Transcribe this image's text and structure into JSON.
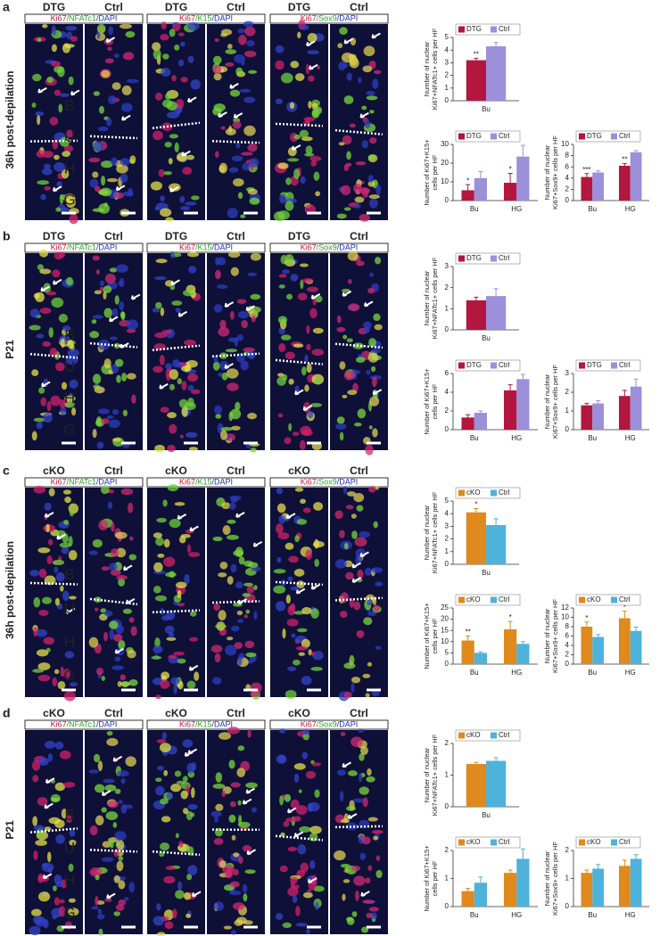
{
  "panels": [
    {
      "label": "a",
      "row_label": "36h post-depilation",
      "regions": [
        "B",
        "U",
        "H",
        "G"
      ],
      "groups": [
        {
          "headers": [
            "DTG",
            "Ctrl"
          ],
          "stain": [
            "Ki67",
            "/NFATc1",
            "/DAPI"
          ]
        },
        {
          "headers": [
            "DTG",
            "Ctrl"
          ],
          "stain": [
            "Ki67",
            "/K15",
            "/DAPI"
          ]
        },
        {
          "headers": [
            "DTG",
            "Ctrl"
          ],
          "stain": [
            "Ki67",
            "/Sox9",
            "/DAPI"
          ]
        }
      ]
    },
    {
      "label": "b",
      "row_label": "P21",
      "regions": [
        "B",
        "U",
        "H",
        "G"
      ],
      "groups": [
        {
          "headers": [
            "DTG",
            "Ctrl"
          ],
          "stain": [
            "Ki67",
            "/NFATc1",
            "/DAPI"
          ]
        },
        {
          "headers": [
            "DTG",
            "Ctrl"
          ],
          "stain": [
            "Ki67",
            "/K15",
            "/DAPI"
          ]
        },
        {
          "headers": [
            "DTG",
            "Ctrl"
          ],
          "stain": [
            "Ki67",
            "/Sox9",
            "/DAPI"
          ]
        }
      ]
    },
    {
      "label": "c",
      "row_label": "36h post-depilation",
      "regions": [
        "B",
        "U",
        "H",
        "G"
      ],
      "groups": [
        {
          "headers": [
            "cKO",
            "Ctrl"
          ],
          "stain": [
            "Ki67",
            "/NFATc1",
            "/DAPI"
          ]
        },
        {
          "headers": [
            "cKO",
            "Ctrl"
          ],
          "stain": [
            "Ki67",
            "/K15",
            "/DAPI"
          ]
        },
        {
          "headers": [
            "cKO",
            "Ctrl"
          ],
          "stain": [
            "Ki67",
            "/Sox9",
            "/DAPI"
          ]
        }
      ]
    },
    {
      "label": "d",
      "row_label": "P21",
      "regions": [
        "B",
        "U",
        "H",
        "G"
      ],
      "groups": [
        {
          "headers": [
            "cKO",
            "Ctrl"
          ],
          "stain": [
            "Ki67",
            "/NFATc1",
            "/DAPI"
          ]
        },
        {
          "headers": [
            "cKO",
            "Ctrl"
          ],
          "stain": [
            "Ki67",
            "/K15",
            "/DAPI"
          ]
        },
        {
          "headers": [
            "cKO",
            "Ctrl"
          ],
          "stain": [
            "Ki67",
            "/Sox9",
            "/DAPI"
          ]
        }
      ]
    }
  ],
  "chart_data": [
    {
      "type": "bar",
      "ylabel": [
        "Number of nuclear",
        "Ki67+NFATc1+ cells per HF"
      ],
      "categories": [
        "Bu"
      ],
      "ylim": [
        0,
        5
      ],
      "yticks": [
        0,
        1,
        2,
        3,
        4,
        5
      ],
      "series": [
        {
          "name": "DTG",
          "color": "#b3163e",
          "values": [
            3.2
          ],
          "errors": [
            0.15
          ],
          "significance": [
            "**"
          ]
        },
        {
          "name": "Ctrl",
          "color": "#9b90d9",
          "values": [
            4.3
          ],
          "errors": [
            0.3
          ]
        }
      ]
    },
    {
      "type": "bar",
      "ylabel": [
        "Number of Ki67+K15+",
        "cells per HF"
      ],
      "categories": [
        "Bu",
        "HG"
      ],
      "ylim": [
        0,
        30
      ],
      "yticks": [
        0,
        10,
        20,
        30
      ],
      "series": [
        {
          "name": "DTG",
          "color": "#b3163e",
          "values": [
            5.5,
            9.5
          ],
          "errors": [
            3,
            5
          ],
          "significance": [
            "*",
            "*"
          ]
        },
        {
          "name": "Ctrl",
          "color": "#9b90d9",
          "values": [
            12,
            23.5
          ],
          "errors": [
            3.5,
            6
          ]
        }
      ]
    },
    {
      "type": "bar",
      "ylabel": [
        "Number of nuclear",
        "Ki67+Sox9+ cells per HF"
      ],
      "categories": [
        "Bu",
        "HG"
      ],
      "ylim": [
        0,
        10
      ],
      "yticks": [
        0,
        2,
        4,
        6,
        8,
        10
      ],
      "series": [
        {
          "name": "DTG",
          "color": "#b3163e",
          "values": [
            4.2,
            6.2
          ],
          "errors": [
            0.6,
            0.4
          ],
          "significance": [
            "***",
            "**"
          ]
        },
        {
          "name": "Ctrl",
          "color": "#9b90d9",
          "values": [
            5,
            8.6
          ],
          "errors": [
            0.3,
            0.3
          ]
        }
      ]
    },
    {
      "type": "bar",
      "ylabel": [
        "Number of nuclear",
        "Ki67+NFATc1+ cells per HF"
      ],
      "categories": [
        "Bu"
      ],
      "ylim": [
        0,
        3
      ],
      "yticks": [
        0,
        1,
        2,
        3
      ],
      "series": [
        {
          "name": "DTG",
          "color": "#b3163e",
          "values": [
            1.4
          ],
          "errors": [
            0.15
          ]
        },
        {
          "name": "Ctrl",
          "color": "#9b90d9",
          "values": [
            1.6
          ],
          "errors": [
            0.35
          ]
        }
      ]
    },
    {
      "type": "bar",
      "ylabel": [
        "Number of Ki67+K15+",
        "cells per HF"
      ],
      "categories": [
        "Bu",
        "HG"
      ],
      "ylim": [
        0,
        6
      ],
      "yticks": [
        0,
        2,
        4,
        6
      ],
      "series": [
        {
          "name": "DTG",
          "color": "#b3163e",
          "values": [
            1.3,
            4.2
          ],
          "errors": [
            0.3,
            0.6
          ]
        },
        {
          "name": "Ctrl",
          "color": "#9b90d9",
          "values": [
            1.8,
            5.4
          ],
          "errors": [
            0.2,
            0.5
          ]
        }
      ]
    },
    {
      "type": "bar",
      "ylabel": [
        "Number of nuclear",
        "Ki67+Sox9+ cells per HF"
      ],
      "categories": [
        "Bu",
        "HG"
      ],
      "ylim": [
        0,
        3
      ],
      "yticks": [
        0,
        1,
        2,
        3
      ],
      "series": [
        {
          "name": "DTG",
          "color": "#b3163e",
          "values": [
            1.3,
            1.8
          ],
          "errors": [
            0.1,
            0.3
          ]
        },
        {
          "name": "Ctrl",
          "color": "#9b90d9",
          "values": [
            1.4,
            2.3
          ],
          "errors": [
            0.15,
            0.4
          ]
        }
      ]
    },
    {
      "type": "bar",
      "ylabel": [
        "Number of nuclear",
        "Ki67+NFATc1+ cells per HF"
      ],
      "categories": [
        "Bu"
      ],
      "ylim": [
        0,
        5
      ],
      "yticks": [
        0,
        1,
        2,
        3,
        4,
        5
      ],
      "series": [
        {
          "name": "cKO",
          "color": "#e0891c",
          "values": [
            4.1
          ],
          "errors": [
            0.3
          ],
          "significance": [
            "*"
          ]
        },
        {
          "name": "Ctrl",
          "color": "#4fb2da",
          "values": [
            3.1
          ],
          "errors": [
            0.5
          ]
        }
      ]
    },
    {
      "type": "bar",
      "ylabel": [
        "Number of Ki67+K15+",
        "cells per HF"
      ],
      "categories": [
        "Bu",
        "HG"
      ],
      "ylim": [
        0,
        25
      ],
      "yticks": [
        0,
        5,
        10,
        15,
        20,
        25
      ],
      "series": [
        {
          "name": "cKO",
          "color": "#e0891c",
          "values": [
            10.5,
            15.5
          ],
          "errors": [
            2,
            3.5
          ],
          "significance": [
            "**",
            "*"
          ]
        },
        {
          "name": "Ctrl",
          "color": "#4fb2da",
          "values": [
            5,
            9
          ],
          "errors": [
            0.5,
            1
          ]
        }
      ]
    },
    {
      "type": "bar",
      "ylabel": [
        "Number of nuclear",
        "Ki67+Sox9+ cells per HF"
      ],
      "categories": [
        "Bu",
        "HG"
      ],
      "ylim": [
        0,
        12
      ],
      "yticks": [
        0,
        2,
        4,
        6,
        8,
        10,
        12
      ],
      "series": [
        {
          "name": "cKO",
          "color": "#e0891c",
          "values": [
            8,
            9.8
          ],
          "errors": [
            1,
            1.5
          ],
          "significance": [
            "*",
            "*"
          ]
        },
        {
          "name": "Ctrl",
          "color": "#4fb2da",
          "values": [
            5.8,
            7.1
          ],
          "errors": [
            0.5,
            0.8
          ]
        }
      ]
    },
    {
      "type": "bar",
      "ylabel": [
        "Number of nuclear",
        "Ki67+NFATc1+ cells per HF"
      ],
      "categories": [
        "Bu"
      ],
      "ylim": [
        0,
        2
      ],
      "yticks": [
        0,
        1,
        2
      ],
      "series": [
        {
          "name": "cKO",
          "color": "#e0891c",
          "values": [
            1.35
          ],
          "errors": [
            0.05
          ]
        },
        {
          "name": "Ctrl",
          "color": "#4fb2da",
          "values": [
            1.45
          ],
          "errors": [
            0.1
          ]
        }
      ]
    },
    {
      "type": "bar",
      "ylabel": [
        "Number of Ki67+K15+",
        "cells per HF"
      ],
      "categories": [
        "Bu",
        "HG"
      ],
      "ylim": [
        0,
        2
      ],
      "yticks": [
        0,
        1,
        2
      ],
      "series": [
        {
          "name": "cKO",
          "color": "#e0891c",
          "values": [
            0.55,
            1.2
          ],
          "errors": [
            0.1,
            0.1
          ]
        },
        {
          "name": "Ctrl",
          "color": "#4fb2da",
          "values": [
            0.85,
            1.7
          ],
          "errors": [
            0.2,
            0.35
          ]
        }
      ]
    },
    {
      "type": "bar",
      "ylabel": [
        "Number of nuclear",
        "Ki67+Sox9+ cells per HF"
      ],
      "categories": [
        "Bu",
        "HG"
      ],
      "ylim": [
        0,
        2
      ],
      "yticks": [
        0,
        1,
        2
      ],
      "series": [
        {
          "name": "cKO",
          "color": "#e0891c",
          "values": [
            1.2,
            1.45
          ],
          "errors": [
            0.1,
            0.2
          ]
        },
        {
          "name": "Ctrl",
          "color": "#4fb2da",
          "values": [
            1.35,
            1.7
          ],
          "errors": [
            0.15,
            0.15
          ]
        }
      ]
    }
  ]
}
